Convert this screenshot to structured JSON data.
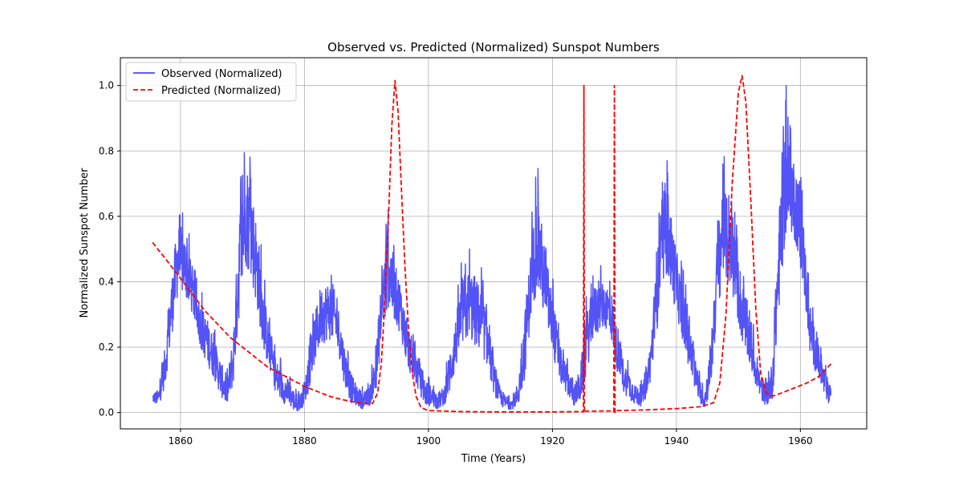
{
  "chart_data": {
    "type": "line",
    "title": "Observed vs. Predicted (Normalized) Sunspot Numbers",
    "xlabel": "Time (Years)",
    "ylabel": "Normalized Sunspot Number",
    "xlim": [
      1850.3,
      1970.7
    ],
    "ylim": [
      -0.05,
      1.085
    ],
    "xticks": [
      1860,
      1880,
      1900,
      1920,
      1940,
      1960
    ],
    "yticks": [
      0.0,
      0.2,
      0.4,
      0.6,
      0.8,
      1.0
    ],
    "xtick_labels": [
      "1860",
      "1880",
      "1900",
      "1920",
      "1940",
      "1960"
    ],
    "ytick_labels": [
      "0.0",
      "0.2",
      "0.4",
      "0.6",
      "0.8",
      "1.0"
    ],
    "grid": true,
    "legend_position": "top-left",
    "series": [
      {
        "name": "Observed (Normalized)",
        "style": "solid",
        "color": "#4a4af5",
        "envelope": [
          [
            1855.5,
            0.03,
            0.06
          ],
          [
            1856.5,
            0.02,
            0.07
          ],
          [
            1857.5,
            0.08,
            0.2
          ],
          [
            1858.5,
            0.22,
            0.4
          ],
          [
            1859.5,
            0.35,
            0.58
          ],
          [
            1860.5,
            0.36,
            0.56
          ],
          [
            1861.5,
            0.32,
            0.48
          ],
          [
            1862.5,
            0.26,
            0.38
          ],
          [
            1863.5,
            0.18,
            0.32
          ],
          [
            1864.5,
            0.14,
            0.28
          ],
          [
            1865.5,
            0.1,
            0.22
          ],
          [
            1866.5,
            0.05,
            0.16
          ],
          [
            1867.5,
            0.02,
            0.1
          ],
          [
            1868.5,
            0.08,
            0.24
          ],
          [
            1869.5,
            0.3,
            0.62
          ],
          [
            1870.5,
            0.45,
            0.78
          ],
          [
            1871.5,
            0.4,
            0.7
          ],
          [
            1872.5,
            0.3,
            0.55
          ],
          [
            1873.5,
            0.18,
            0.36
          ],
          [
            1874.5,
            0.12,
            0.24
          ],
          [
            1875.5,
            0.05,
            0.16
          ],
          [
            1876.5,
            0.03,
            0.12
          ],
          [
            1877.5,
            0.02,
            0.1
          ],
          [
            1878.5,
            0.0,
            0.06
          ],
          [
            1879.5,
            0.01,
            0.06
          ],
          [
            1880.5,
            0.05,
            0.14
          ],
          [
            1881.5,
            0.14,
            0.28
          ],
          [
            1882.5,
            0.2,
            0.38
          ],
          [
            1883.5,
            0.22,
            0.4
          ],
          [
            1884.5,
            0.22,
            0.4
          ],
          [
            1885.5,
            0.18,
            0.32
          ],
          [
            1886.5,
            0.08,
            0.2
          ],
          [
            1887.5,
            0.03,
            0.12
          ],
          [
            1888.5,
            0.02,
            0.08
          ],
          [
            1889.5,
            0.01,
            0.06
          ],
          [
            1890.5,
            0.02,
            0.08
          ],
          [
            1891.5,
            0.06,
            0.18
          ],
          [
            1892.5,
            0.22,
            0.44
          ],
          [
            1893.5,
            0.32,
            0.58
          ],
          [
            1894.5,
            0.28,
            0.46
          ],
          [
            1895.5,
            0.24,
            0.4
          ],
          [
            1896.5,
            0.14,
            0.28
          ],
          [
            1897.5,
            0.1,
            0.22
          ],
          [
            1898.5,
            0.06,
            0.16
          ],
          [
            1899.5,
            0.02,
            0.1
          ],
          [
            1900.5,
            0.02,
            0.08
          ],
          [
            1901.5,
            0.01,
            0.06
          ],
          [
            1902.5,
            0.02,
            0.08
          ],
          [
            1903.5,
            0.06,
            0.2
          ],
          [
            1904.5,
            0.14,
            0.3
          ],
          [
            1905.5,
            0.2,
            0.42
          ],
          [
            1906.5,
            0.22,
            0.44
          ],
          [
            1907.5,
            0.2,
            0.42
          ],
          [
            1908.5,
            0.18,
            0.38
          ],
          [
            1909.5,
            0.14,
            0.3
          ],
          [
            1910.5,
            0.06,
            0.16
          ],
          [
            1911.5,
            0.02,
            0.08
          ],
          [
            1912.5,
            0.01,
            0.05
          ],
          [
            1913.5,
            0.01,
            0.04
          ],
          [
            1914.5,
            0.02,
            0.1
          ],
          [
            1915.5,
            0.1,
            0.3
          ],
          [
            1916.5,
            0.28,
            0.5
          ],
          [
            1917.5,
            0.38,
            0.68
          ],
          [
            1918.5,
            0.3,
            0.55
          ],
          [
            1919.5,
            0.22,
            0.42
          ],
          [
            1920.5,
            0.14,
            0.3
          ],
          [
            1921.5,
            0.08,
            0.18
          ],
          [
            1922.5,
            0.05,
            0.14
          ],
          [
            1923.5,
            0.02,
            0.08
          ],
          [
            1924.5,
            0.03,
            0.14
          ],
          [
            1925.5,
            0.12,
            0.3
          ],
          [
            1926.5,
            0.22,
            0.38
          ],
          [
            1927.5,
            0.24,
            0.4
          ],
          [
            1928.5,
            0.26,
            0.4
          ],
          [
            1929.5,
            0.22,
            0.38
          ],
          [
            1930.5,
            0.12,
            0.24
          ],
          [
            1931.5,
            0.06,
            0.16
          ],
          [
            1932.5,
            0.04,
            0.12
          ],
          [
            1933.5,
            0.02,
            0.08
          ],
          [
            1934.5,
            0.02,
            0.08
          ],
          [
            1935.5,
            0.06,
            0.16
          ],
          [
            1936.5,
            0.18,
            0.38
          ],
          [
            1937.5,
            0.36,
            0.62
          ],
          [
            1938.5,
            0.42,
            0.7
          ],
          [
            1939.5,
            0.34,
            0.56
          ],
          [
            1940.5,
            0.26,
            0.44
          ],
          [
            1941.5,
            0.18,
            0.34
          ],
          [
            1942.5,
            0.1,
            0.22
          ],
          [
            1943.5,
            0.04,
            0.12
          ],
          [
            1944.5,
            0.01,
            0.06
          ],
          [
            1945.5,
            0.06,
            0.2
          ],
          [
            1946.5,
            0.28,
            0.52
          ],
          [
            1947.5,
            0.42,
            0.72
          ],
          [
            1948.5,
            0.38,
            0.62
          ],
          [
            1949.5,
            0.32,
            0.54
          ],
          [
            1950.5,
            0.22,
            0.42
          ],
          [
            1951.5,
            0.16,
            0.32
          ],
          [
            1952.5,
            0.1,
            0.22
          ],
          [
            1953.5,
            0.04,
            0.12
          ],
          [
            1954.5,
            0.02,
            0.08
          ],
          [
            1955.5,
            0.04,
            0.16
          ],
          [
            1956.5,
            0.3,
            0.6
          ],
          [
            1957.5,
            0.52,
            0.86
          ],
          [
            1958.5,
            0.55,
            0.82
          ],
          [
            1959.5,
            0.5,
            0.74
          ],
          [
            1960.5,
            0.38,
            0.58
          ],
          [
            1961.5,
            0.18,
            0.34
          ],
          [
            1962.5,
            0.12,
            0.24
          ],
          [
            1963.5,
            0.06,
            0.16
          ],
          [
            1964.5,
            0.03,
            0.1
          ]
        ],
        "peaks": [
          [
            1870.3,
            0.795
          ],
          [
            1893.5,
            0.62
          ],
          [
            1917.3,
            0.72
          ],
          [
            1938.5,
            0.77
          ],
          [
            1947.5,
            0.76
          ],
          [
            1957.7,
            1.0
          ]
        ]
      },
      {
        "name": "Predicted (Normalized)",
        "style": "dashed",
        "color": "#ff0000",
        "points": [
          [
            1855.5,
            0.52
          ],
          [
            1858,
            0.46
          ],
          [
            1860,
            0.41
          ],
          [
            1862,
            0.36
          ],
          [
            1864,
            0.31
          ],
          [
            1866,
            0.27
          ],
          [
            1868,
            0.23
          ],
          [
            1870,
            0.2
          ],
          [
            1872,
            0.17
          ],
          [
            1874,
            0.14
          ],
          [
            1876,
            0.12
          ],
          [
            1878,
            0.1
          ],
          [
            1880,
            0.08
          ],
          [
            1882,
            0.065
          ],
          [
            1884,
            0.05
          ],
          [
            1886,
            0.04
          ],
          [
            1888,
            0.032
          ],
          [
            1890,
            0.027
          ],
          [
            1891,
            0.028
          ],
          [
            1891.8,
            0.06
          ],
          [
            1892.4,
            0.15
          ],
          [
            1893,
            0.35
          ],
          [
            1893.6,
            0.62
          ],
          [
            1894.1,
            0.88
          ],
          [
            1894.6,
            1.015
          ],
          [
            1895.1,
            0.92
          ],
          [
            1895.6,
            0.7
          ],
          [
            1896.2,
            0.45
          ],
          [
            1896.8,
            0.25
          ],
          [
            1897.4,
            0.12
          ],
          [
            1898,
            0.05
          ],
          [
            1898.8,
            0.015
          ],
          [
            1900,
            0.006
          ],
          [
            1905,
            0.003
          ],
          [
            1910,
            0.002
          ],
          [
            1915,
            0.002
          ],
          [
            1920,
            0.002
          ],
          [
            1924.9,
            0.003
          ],
          [
            1925.0,
            0.002
          ],
          [
            1925.08,
            1.0
          ],
          [
            1925.16,
            0.0
          ],
          [
            1925.3,
            0.004
          ],
          [
            1929.8,
            0.005
          ],
          [
            1929.9,
            0.003
          ],
          [
            1930.0,
            1.0
          ],
          [
            1930.1,
            0.0
          ],
          [
            1930.3,
            0.006
          ],
          [
            1935,
            0.008
          ],
          [
            1940,
            0.012
          ],
          [
            1944,
            0.018
          ],
          [
            1946,
            0.03
          ],
          [
            1947,
            0.09
          ],
          [
            1948,
            0.3
          ],
          [
            1949,
            0.7
          ],
          [
            1950,
            0.98
          ],
          [
            1950.6,
            1.03
          ],
          [
            1951.2,
            0.95
          ],
          [
            1952,
            0.65
          ],
          [
            1952.8,
            0.32
          ],
          [
            1953.6,
            0.12
          ],
          [
            1954.5,
            0.06
          ],
          [
            1955.5,
            0.05
          ],
          [
            1957,
            0.06
          ],
          [
            1959,
            0.075
          ],
          [
            1961,
            0.09
          ],
          [
            1963,
            0.11
          ],
          [
            1965,
            0.15
          ]
        ]
      }
    ]
  }
}
